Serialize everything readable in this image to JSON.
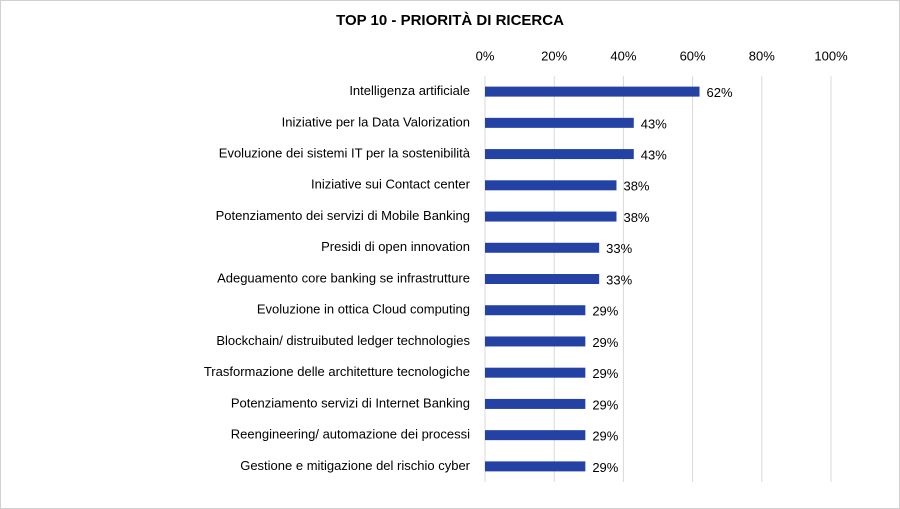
{
  "chart_data": {
    "type": "bar",
    "orientation": "horizontal",
    "title": "TOP 10 - PRIORITÀ DI RICERCA",
    "categories": [
      "Intelligenza artificiale",
      "Iniziative per la Data Valorization",
      "Evoluzione dei sistemi IT per la sostenibilità",
      "Iniziative sui Contact center",
      "Potenziamento dei servizi di Mobile Banking",
      "Presidi di open innovation",
      "Adeguamento core banking se infrastrutture",
      "Evoluzione in ottica Cloud computing",
      "Blockchain/ distruibuted ledger technologies",
      "Trasformazione delle architetture tecnologiche",
      "Potenziamento servizi di Internet Banking",
      "Reengineering/ automazione dei processi",
      "Gestione e mitigazione del rischio cyber"
    ],
    "values": [
      62,
      43,
      43,
      38,
      38,
      33,
      33,
      29,
      29,
      29,
      29,
      29,
      29
    ],
    "value_labels": [
      "62%",
      "43%",
      "43%",
      "38%",
      "38%",
      "33%",
      "33%",
      "29%",
      "29%",
      "29%",
      "29%",
      "29%",
      "29%"
    ],
    "color": "#2342a4",
    "xlim": [
      0,
      100
    ],
    "xticks": [
      {
        "value": 0,
        "label": "0%"
      },
      {
        "value": 20,
        "label": "20%"
      },
      {
        "value": 40,
        "label": "40%"
      },
      {
        "value": 60,
        "label": "60%"
      },
      {
        "value": 80,
        "label": "80%"
      },
      {
        "value": 100,
        "label": "100%"
      }
    ],
    "grid": true
  }
}
